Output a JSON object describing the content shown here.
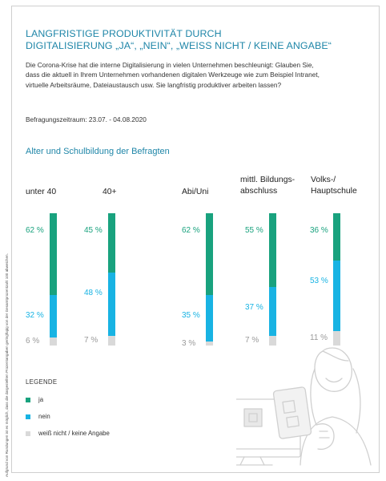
{
  "title_lines": [
    "LANGFRISTIGE PRODUKTIVITÄT DURCH",
    "DIGITALISIERUNG „JA“, „NEIN“, „WEISS NICHT / KEINE ANGABE“"
  ],
  "question_lines": [
    "Die Corona-Krise hat die interne Digitalisierung in vielen Unternehmen beschleunigt: Glauben Sie,",
    "dass die aktuell in Ihrem Unternehmen vorhandenen digitalen Werkzeuge wie zum Beispiel Intranet,",
    "virtuelle Arbeitsräume, Dateiaustausch usw. Sie langfristig produktiver arbeiten lassen?"
  ],
  "period": "Befragungszeitraum: 23.07. - 04.08.2020",
  "side_note": "Aufgrund von Rundungen ist es möglich, dass die dargestellten Prozentangaben geringfügig von der Gesamtprozentzahl 100 abweichen.",
  "colors": {
    "ja": "#19a27e",
    "nein": "#18b3e3",
    "weiss_nicht": "#d9d9d9",
    "accent": "#1f86a8"
  },
  "legend": {
    "title": "LEGENDE",
    "items": [
      "ja",
      "nein",
      "weiß nicht / keine Angabe"
    ]
  },
  "chart_data": {
    "type": "bar",
    "stacked": true,
    "orientation": "vertical",
    "title": "Alter und Schulbildung der Befragten",
    "categories": [
      "unter 40",
      "40+",
      "Abi/Uni",
      "mittl. Bildungs-abschluss",
      "Volks-/ Hauptschule"
    ],
    "category_lines": [
      [
        "unter 40"
      ],
      [
        "40+"
      ],
      [
        "Abi/Uni"
      ],
      [
        "mittl. Bildungs-",
        "abschluss"
      ],
      [
        "Volks-/",
        "Hauptschule"
      ]
    ],
    "series": [
      {
        "name": "ja",
        "values": [
          62,
          45,
          62,
          55,
          36
        ]
      },
      {
        "name": "nein",
        "values": [
          32,
          48,
          35,
          37,
          53
        ]
      },
      {
        "name": "weiß nicht / keine Angabe",
        "values": [
          6,
          7,
          3,
          7,
          11
        ]
      }
    ],
    "value_labels": {
      "ja": [
        "62 %",
        "45 %",
        "62 %",
        "55 %",
        "36 %"
      ],
      "nein": [
        "32 %",
        "48 %",
        "35 %",
        "37 %",
        "53 %"
      ],
      "weiss_nicht": [
        "6 %",
        "7 %",
        "3 %",
        "7 %",
        "11 %"
      ]
    },
    "ylim": [
      0,
      100
    ],
    "legend_position": "bottom-left",
    "grid": false
  }
}
